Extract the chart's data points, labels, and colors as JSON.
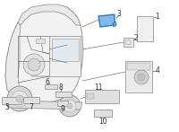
{
  "bg_color": "#ffffff",
  "highlight_color": "#6aaee8",
  "highlight_alpha": 0.85,
  "line_color": "#555555",
  "line_width": 0.5,
  "figsize": [
    2.0,
    1.47
  ],
  "dpi": 100,
  "car": {
    "body_color": "#f0f0f0",
    "body_edge": "#777777",
    "glass_color": "#e8eef5"
  }
}
